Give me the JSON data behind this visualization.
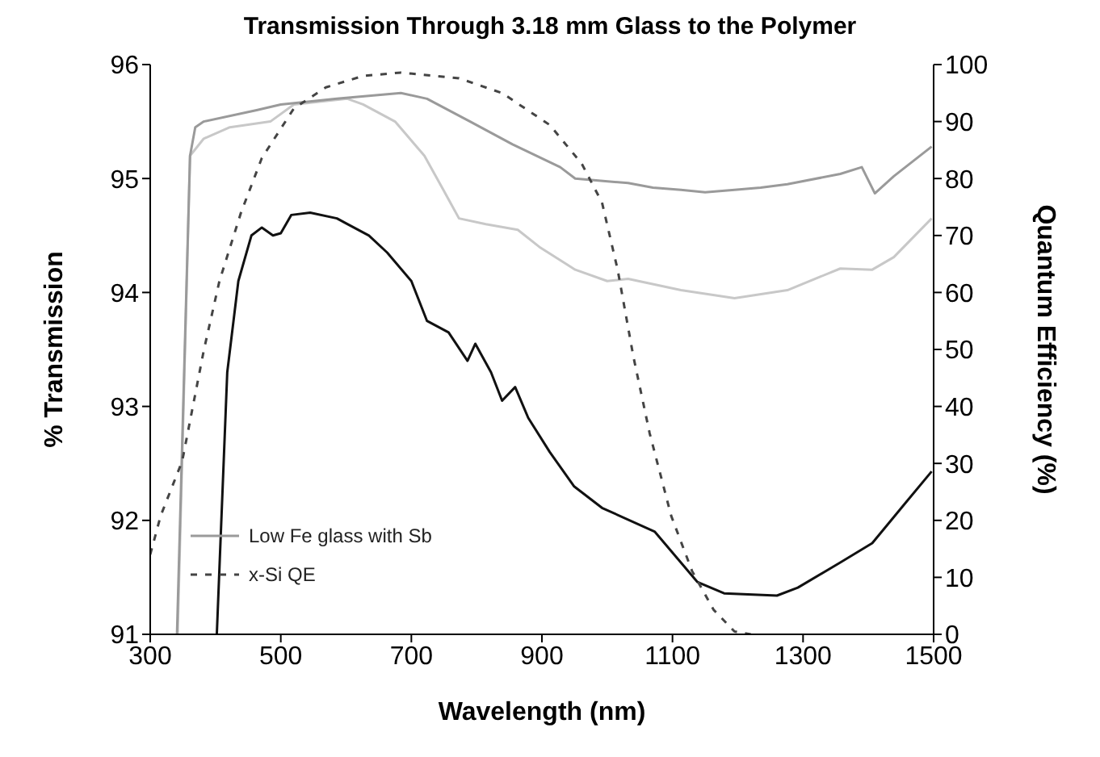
{
  "chart_data": {
    "type": "line",
    "title": "Transmission Through 3.18 mm Glass to the Polymer",
    "xlabel": "Wavelength (nm)",
    "ylabel": "% Transmission",
    "y2label": "Quantum Efficiency (%)",
    "xlim": [
      300,
      1500
    ],
    "xticks": [
      300,
      500,
      700,
      900,
      1100,
      1300,
      1500
    ],
    "ylim": [
      91,
      96
    ],
    "yticks": [
      91,
      92,
      93,
      94,
      95,
      96
    ],
    "y2lim": [
      0,
      100
    ],
    "y2ticks": [
      0,
      10,
      20,
      30,
      40,
      50,
      60,
      70,
      80,
      90,
      100
    ],
    "grid": false,
    "legend": "bottom left",
    "marker": "none",
    "series": [
      {
        "color": "#c8c8c8",
        "line_style": "solid",
        "x": [
          342,
          361,
          382,
          422,
          484,
          520,
          602,
          626,
          675,
          720,
          749,
          773,
          814,
          863,
          896,
          937,
          951,
          1000,
          1032,
          1113,
          1195,
          1276,
          1357,
          1406,
          1439,
          1497
        ],
        "values": [
          91,
          95.2,
          95.35,
          95.45,
          95.5,
          95.65,
          95.7,
          95.65,
          95.5,
          95.2,
          94.9,
          94.65,
          94.6,
          94.55,
          94.4,
          94.25,
          94.2,
          94.1,
          94.12,
          94.02,
          93.95,
          94.02,
          94.21,
          94.2,
          94.31,
          94.65
        ]
      },
      {
        "name": "Low Fe glass with Sb",
        "color": "#9a9a9a",
        "line_style": "solid",
        "x": [
          341,
          361,
          369,
          382,
          463,
          500,
          586,
          684,
          724,
          790,
          855,
          928,
          951,
          1032,
          1070,
          1113,
          1150,
          1195,
          1235,
          1276,
          1357,
          1390,
          1410,
          1439,
          1497
        ],
        "values": [
          91,
          95.2,
          95.45,
          95.5,
          95.6,
          95.65,
          95.7,
          95.75,
          95.7,
          95.5,
          95.3,
          95.1,
          95.0,
          94.96,
          94.92,
          94.9,
          94.88,
          94.9,
          94.92,
          94.95,
          95.04,
          95.1,
          94.87,
          95.02,
          95.28
        ]
      },
      {
        "color": "#111111",
        "line_style": "solid",
        "x": [
          402,
          418,
          435,
          455,
          471,
          488,
          500,
          516,
          545,
          586,
          602,
          635,
          663,
          700,
          724,
          757,
          786,
          798,
          822,
          839,
          859,
          879,
          912,
          949,
          992,
          1073,
          1138,
          1179,
          1260,
          1292,
          1357,
          1406,
          1455,
          1497
        ],
        "values": [
          91,
          93.3,
          94.1,
          94.5,
          94.57,
          94.5,
          94.52,
          94.68,
          94.7,
          94.65,
          94.6,
          94.5,
          94.35,
          94.1,
          93.75,
          93.65,
          93.4,
          93.55,
          93.3,
          93.05,
          93.17,
          92.9,
          92.6,
          92.3,
          92.11,
          91.9,
          91.46,
          91.36,
          91.34,
          91.41,
          91.63,
          91.8,
          92.14,
          92.43
        ]
      },
      {
        "name": "x-Si QE",
        "color": "#444444",
        "line_style": "dashed",
        "axis": "y2",
        "x": [
          300,
          316,
          349,
          382,
          406,
          439,
          471,
          520,
          569,
          626,
          684,
          773,
          839,
          912,
          961,
          992,
          1016,
          1040,
          1065,
          1098,
          1130,
          1163,
          1195,
          1220
        ],
        "values": [
          14,
          20.8,
          30.4,
          49.8,
          62,
          74,
          83.6,
          92.3,
          96,
          98,
          98.6,
          97.6,
          95,
          89.4,
          82.6,
          75.8,
          64,
          48.8,
          35.3,
          20.8,
          11.1,
          4.3,
          0.5,
          0
        ]
      }
    ]
  }
}
